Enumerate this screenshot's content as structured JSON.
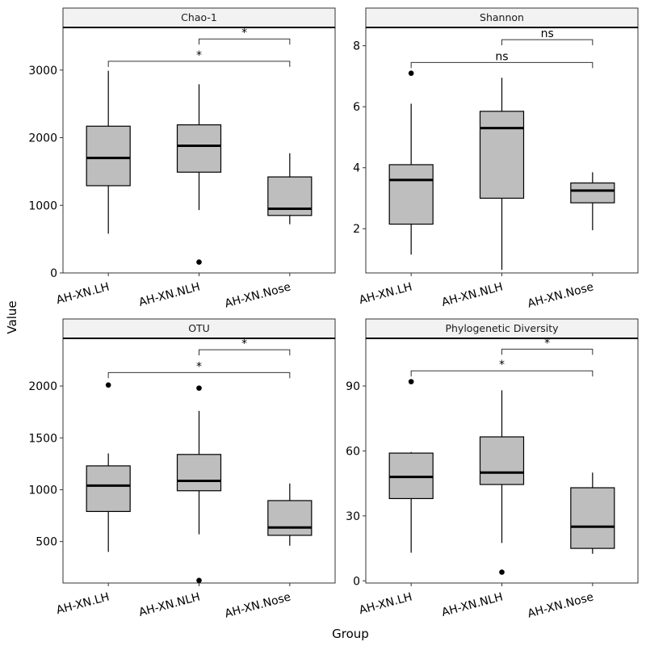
{
  "figure": {
    "xlabel": "Group",
    "ylabel": "Value"
  },
  "colors": {
    "box_fill": "#bebebe",
    "strip_fill": "#f2f2f2",
    "ink": "#000000",
    "bracket": "#333333"
  },
  "chart_data": [
    {
      "type": "box",
      "title": "Chao-1",
      "categories": [
        "AH-XN.LH",
        "AH-XN.NLH",
        "AH-XN.Nose"
      ],
      "ylim": [
        0,
        3630
      ],
      "yticks": [
        0,
        1000,
        2000,
        3000
      ],
      "boxes": [
        {
          "whisker_low": 580,
          "q1": 1290,
          "median": 1700,
          "q3": 2170,
          "whisker_high": 2990,
          "outliers": []
        },
        {
          "whisker_low": 930,
          "q1": 1490,
          "median": 1880,
          "q3": 2190,
          "whisker_high": 2790,
          "outliers": [
            160
          ]
        },
        {
          "whisker_low": 720,
          "q1": 850,
          "median": 950,
          "q3": 1420,
          "whisker_high": 1770,
          "outliers": []
        }
      ],
      "brackets": [
        {
          "from": 1,
          "to": 2,
          "y": 3460,
          "label": "*"
        },
        {
          "from": 0,
          "to": 2,
          "y": 3130,
          "label": "*"
        }
      ]
    },
    {
      "type": "box",
      "title": "Shannon",
      "categories": [
        "AH-XN.LH",
        "AH-XN.NLH",
        "AH-XN.Nose"
      ],
      "ylim": [
        0.55,
        8.6
      ],
      "yticks": [
        2,
        4,
        6,
        8
      ],
      "boxes": [
        {
          "whisker_low": 1.15,
          "q1": 2.15,
          "median": 3.6,
          "q3": 4.1,
          "whisker_high": 6.1,
          "outliers": [
            7.1
          ]
        },
        {
          "whisker_low": 0.65,
          "q1": 3.0,
          "median": 5.3,
          "q3": 5.85,
          "whisker_high": 6.95,
          "outliers": []
        },
        {
          "whisker_low": 1.95,
          "q1": 2.85,
          "median": 3.25,
          "q3": 3.5,
          "whisker_high": 3.85,
          "outliers": []
        }
      ],
      "brackets": [
        {
          "from": 1,
          "to": 2,
          "y": 8.2,
          "label": "ns"
        },
        {
          "from": 0,
          "to": 2,
          "y": 7.45,
          "label": "ns"
        }
      ]
    },
    {
      "type": "box",
      "title": "OTU",
      "categories": [
        "AH-XN.LH",
        "AH-XN.NLH",
        "AH-XN.Nose"
      ],
      "ylim": [
        100,
        2460
      ],
      "yticks": [
        500,
        1000,
        1500,
        2000
      ],
      "boxes": [
        {
          "whisker_low": 400,
          "q1": 790,
          "median": 1040,
          "q3": 1230,
          "whisker_high": 1350,
          "outliers": [
            2010
          ]
        },
        {
          "whisker_low": 570,
          "q1": 990,
          "median": 1085,
          "q3": 1340,
          "whisker_high": 1760,
          "outliers": [
            1980,
            125
          ]
        },
        {
          "whisker_low": 460,
          "q1": 560,
          "median": 635,
          "q3": 895,
          "whisker_high": 1060,
          "outliers": []
        }
      ],
      "brackets": [
        {
          "from": 1,
          "to": 2,
          "y": 2350,
          "label": "*"
        },
        {
          "from": 0,
          "to": 2,
          "y": 2130,
          "label": "*"
        }
      ]
    },
    {
      "type": "box",
      "title": "Phylogenetic Diversity",
      "categories": [
        "AH-XN.LH",
        "AH-XN.NLH",
        "AH-XN.Nose"
      ],
      "ylim": [
        -1,
        112
      ],
      "yticks": [
        0,
        30,
        60,
        90
      ],
      "boxes": [
        {
          "whisker_low": 13,
          "q1": 38,
          "median": 48,
          "q3": 59,
          "whisker_high": 59.5,
          "outliers": [
            92
          ]
        },
        {
          "whisker_low": 17.5,
          "q1": 44.5,
          "median": 50,
          "q3": 66.5,
          "whisker_high": 88,
          "outliers": [
            4
          ]
        },
        {
          "whisker_low": 12.5,
          "q1": 15,
          "median": 25,
          "q3": 43,
          "whisker_high": 50,
          "outliers": []
        }
      ],
      "brackets": [
        {
          "from": 1,
          "to": 2,
          "y": 107,
          "label": "*"
        },
        {
          "from": 0,
          "to": 2,
          "y": 97,
          "label": "*"
        }
      ]
    }
  ]
}
